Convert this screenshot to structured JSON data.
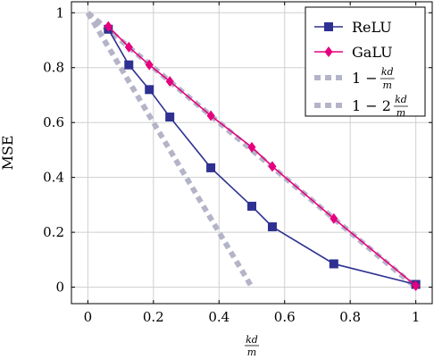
{
  "chart_data": {
    "type": "line",
    "title": "",
    "xlabel": "kd/m",
    "xlabel_num": "kd",
    "xlabel_den": "m",
    "ylabel": "MSE",
    "xlim": [
      -0.05,
      1.05
    ],
    "ylim": [
      -0.06,
      1.04
    ],
    "xticks": [
      0,
      0.2,
      0.4,
      0.6,
      0.8,
      1
    ],
    "xtick_labels": [
      "0",
      "0.2",
      "0.4",
      "0.6",
      "0.8",
      "1"
    ],
    "yticks": [
      0,
      0.2,
      0.4,
      0.6,
      0.8,
      1
    ],
    "ytick_labels": [
      "0",
      "0.2",
      "0.4",
      "0.6",
      "0.8",
      "1"
    ],
    "grid": true,
    "legend_position": "top-right",
    "series": [
      {
        "name": "ReLU",
        "color": "#2e3191",
        "marker": "square",
        "x": [
          0.0625,
          0.125,
          0.1875,
          0.25,
          0.375,
          0.5,
          0.5625,
          0.75,
          1.0
        ],
        "y": [
          0.94,
          0.81,
          0.72,
          0.62,
          0.435,
          0.295,
          0.22,
          0.085,
          0.01
        ]
      },
      {
        "name": "GaLU",
        "color": "#e6007e",
        "marker": "diamond",
        "x": [
          0.0625,
          0.125,
          0.1875,
          0.25,
          0.375,
          0.5,
          0.5625,
          0.75,
          1.0
        ],
        "y": [
          0.95,
          0.875,
          0.81,
          0.75,
          0.625,
          0.51,
          0.44,
          0.25,
          0.005
        ]
      },
      {
        "name": "1 − kd/m",
        "name_prefix": "1 −",
        "name_num": "kd",
        "name_den": "m",
        "color": "#b4b4c8",
        "style": "dashed-thick",
        "x": [
          0,
          1
        ],
        "y": [
          1,
          0
        ]
      },
      {
        "name": "1 − 2 kd/m",
        "name_prefix": "1 − 2",
        "name_num": "kd",
        "name_den": "m",
        "color": "#b4b4c8",
        "style": "dashed-thick",
        "x": [
          0,
          0.5
        ],
        "y": [
          1,
          0
        ]
      }
    ]
  }
}
